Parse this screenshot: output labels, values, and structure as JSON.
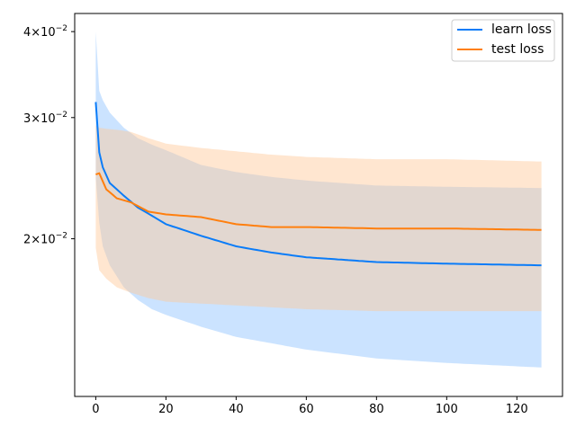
{
  "chart_data": {
    "type": "line",
    "title": "",
    "xlabel": "",
    "ylabel": "",
    "xlim": [
      -6,
      133
    ],
    "ylim": [
      0.0118,
      0.0425
    ],
    "yscale": "log",
    "grid": false,
    "legend_position": "top-right",
    "x_ticks": [
      0,
      20,
      40,
      60,
      80,
      100,
      120
    ],
    "x_tick_labels": [
      "0",
      "20",
      "40",
      "60",
      "80",
      "100",
      "120"
    ],
    "y_ticks": [
      0.02,
      0.03,
      0.04
    ],
    "y_tick_labels": [
      {
        "mant": "2",
        "exp": "−2"
      },
      {
        "mant": "3",
        "exp": "−2"
      },
      {
        "mant": "4",
        "exp": "−2"
      }
    ],
    "series": [
      {
        "name": "learn loss",
        "color": "#0a7cf8",
        "fill_color": "#8cc2ff",
        "x": [
          0,
          1,
          2,
          4,
          8,
          12,
          16,
          20,
          30,
          40,
          50,
          60,
          80,
          100,
          127
        ],
        "mean": [
          0.0316,
          0.0267,
          0.0254,
          0.0241,
          0.0231,
          0.0222,
          0.0216,
          0.021,
          0.0202,
          0.0195,
          0.0191,
          0.0188,
          0.0185,
          0.0184,
          0.0183
        ],
        "upper": [
          0.04,
          0.0328,
          0.0318,
          0.0305,
          0.029,
          0.028,
          0.0274,
          0.0269,
          0.0256,
          0.025,
          0.0246,
          0.0243,
          0.0239,
          0.0238,
          0.0237
        ],
        "lower": [
          0.0245,
          0.0211,
          0.0195,
          0.0183,
          0.017,
          0.0163,
          0.0158,
          0.0155,
          0.0149,
          0.0144,
          0.0141,
          0.0138,
          0.0134,
          0.0132,
          0.013
        ]
      },
      {
        "name": "test loss",
        "color": "#ff7f0e",
        "fill_color": "#ffc896",
        "x": [
          0,
          1,
          3,
          6,
          10,
          15,
          20,
          30,
          40,
          50,
          60,
          80,
          100,
          127
        ],
        "mean": [
          0.0248,
          0.0249,
          0.0236,
          0.0229,
          0.0226,
          0.0219,
          0.0217,
          0.0215,
          0.021,
          0.0208,
          0.0208,
          0.0207,
          0.0207,
          0.0206
        ],
        "upper": [
          0.0292,
          0.029,
          0.0289,
          0.0288,
          0.0286,
          0.028,
          0.0275,
          0.0271,
          0.0268,
          0.0265,
          0.0263,
          0.0261,
          0.0261,
          0.0259
        ],
        "lower": [
          0.0194,
          0.018,
          0.0175,
          0.017,
          0.0167,
          0.0164,
          0.0162,
          0.0161,
          0.016,
          0.0159,
          0.0158,
          0.0157,
          0.0157,
          0.0157
        ]
      }
    ]
  }
}
